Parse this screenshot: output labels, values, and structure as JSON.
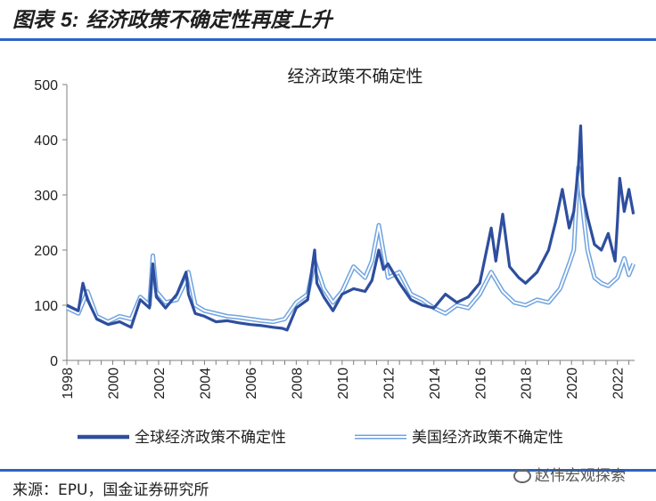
{
  "figure": {
    "title_prefix": "图表",
    "title_number": "5:",
    "title_text": "经济政策不确定性再度上升",
    "source": "来源：EPU，国金证券研究所",
    "watermark": "赵伟宏观探索"
  },
  "chart_data": {
    "type": "line",
    "title": "经济政策不确定性",
    "xlabel": "",
    "ylabel": "",
    "xlim": [
      1998,
      2022.75
    ],
    "ylim": [
      0,
      500
    ],
    "yticks": [
      0,
      100,
      200,
      300,
      400,
      500
    ],
    "xticks": [
      "1998",
      "2000",
      "2002",
      "2004",
      "2006",
      "2008",
      "2010",
      "2012",
      "2014",
      "2016",
      "2018",
      "2020",
      "2022"
    ],
    "grid": false,
    "legend_position": "bottom",
    "series": [
      {
        "name": "全球经济政策不确定性",
        "color": "#2e4e9e",
        "x": [
          1998.0,
          1998.5,
          1998.7,
          1998.9,
          1999.3,
          1999.8,
          2000.3,
          2000.8,
          2001.2,
          2001.6,
          2001.75,
          2001.9,
          2002.3,
          2002.8,
          2003.2,
          2003.3,
          2003.6,
          2004.0,
          2004.5,
          2005.0,
          2005.5,
          2006.0,
          2006.5,
          2007.0,
          2007.4,
          2007.6,
          2008.0,
          2008.5,
          2008.8,
          2008.9,
          2009.2,
          2009.6,
          2010.0,
          2010.5,
          2011.0,
          2011.3,
          2011.6,
          2011.8,
          2012.0,
          2012.5,
          2013.0,
          2013.5,
          2014.0,
          2014.5,
          2015.0,
          2015.5,
          2016.0,
          2016.3,
          2016.5,
          2016.7,
          2017.0,
          2017.3,
          2017.7,
          2018.0,
          2018.5,
          2019.0,
          2019.3,
          2019.6,
          2019.9,
          2020.1,
          2020.3,
          2020.4,
          2020.5,
          2020.7,
          2021.0,
          2021.3,
          2021.6,
          2021.9,
          2022.0,
          2022.1,
          2022.3,
          2022.5,
          2022.7
        ],
        "values": [
          100,
          90,
          140,
          110,
          75,
          65,
          70,
          60,
          110,
          95,
          175,
          115,
          95,
          120,
          160,
          120,
          85,
          80,
          70,
          72,
          68,
          65,
          63,
          60,
          58,
          55,
          95,
          110,
          200,
          140,
          115,
          90,
          120,
          130,
          125,
          145,
          200,
          165,
          175,
          140,
          110,
          100,
          95,
          120,
          105,
          115,
          140,
          200,
          240,
          180,
          265,
          170,
          150,
          140,
          160,
          200,
          250,
          310,
          240,
          270,
          350,
          425,
          300,
          260,
          210,
          200,
          230,
          180,
          250,
          330,
          270,
          310,
          265
        ]
      },
      {
        "name": "美国经济政策不确定性",
        "color": "#6fa3e0",
        "x": [
          1998.0,
          1998.5,
          1998.9,
          1999.3,
          1999.8,
          2000.3,
          2000.8,
          2001.2,
          2001.6,
          2001.75,
          2001.9,
          2002.3,
          2002.8,
          2003.2,
          2003.3,
          2003.6,
          2004.0,
          2004.5,
          2005.0,
          2005.5,
          2006.0,
          2006.5,
          2007.0,
          2007.5,
          2008.0,
          2008.5,
          2008.8,
          2009.2,
          2009.6,
          2010.0,
          2010.5,
          2011.0,
          2011.3,
          2011.6,
          2012.0,
          2012.5,
          2013.0,
          2013.5,
          2014.0,
          2014.5,
          2015.0,
          2015.5,
          2016.0,
          2016.5,
          2017.0,
          2017.5,
          2018.0,
          2018.5,
          2019.0,
          2019.5,
          2019.9,
          2020.1,
          2020.3,
          2020.5,
          2020.7,
          2021.0,
          2021.3,
          2021.6,
          2022.0,
          2022.3,
          2022.5,
          2022.7
        ],
        "values": [
          95,
          85,
          125,
          80,
          70,
          80,
          75,
          115,
          100,
          190,
          125,
          105,
          110,
          145,
          160,
          100,
          90,
          85,
          80,
          78,
          75,
          72,
          70,
          75,
          105,
          120,
          180,
          130,
          105,
          125,
          170,
          150,
          180,
          245,
          150,
          160,
          120,
          110,
          95,
          85,
          100,
          95,
          120,
          160,
          125,
          105,
          100,
          110,
          105,
          130,
          175,
          200,
          350,
          270,
          200,
          150,
          140,
          135,
          150,
          185,
          155,
          175
        ]
      }
    ]
  }
}
